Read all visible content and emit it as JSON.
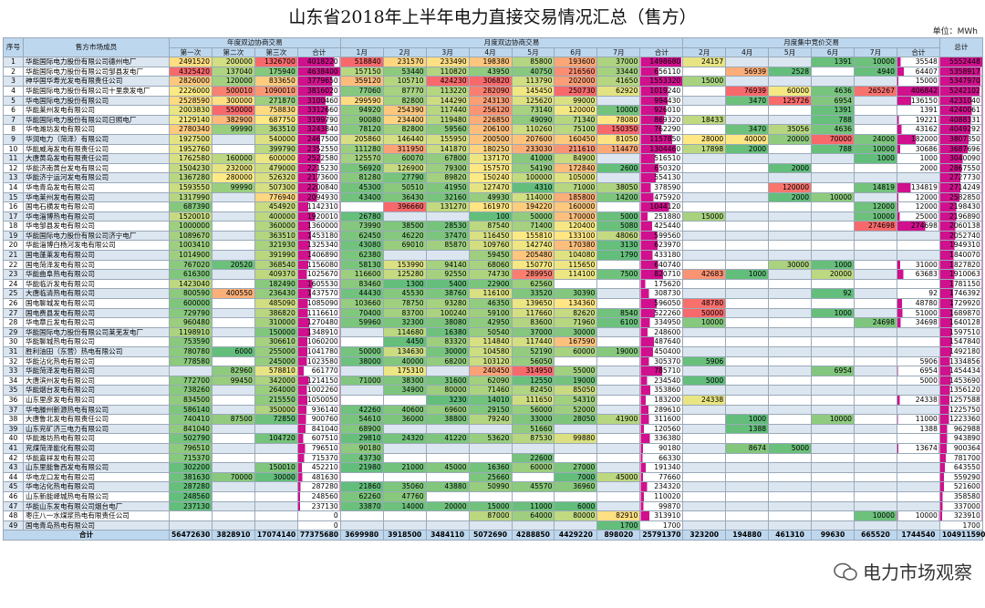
{
  "header": {
    "title": "山东省2018年上半年电力直接交易情况汇总（售方）",
    "unit": "单位：MWh"
  },
  "table": {
    "index_header": "序号",
    "name_header": "售方市场成员",
    "total_header": "总计",
    "groups": [
      {
        "label": "年度双边协商交易",
        "columns": [
          "第一次",
          "第二次",
          "第三次",
          "合计"
        ]
      },
      {
        "label": "月度双边协商交易",
        "columns": [
          "1月",
          "2月",
          "3月",
          "4月",
          "5月",
          "6月",
          "7月",
          "合计"
        ]
      },
      {
        "label": "月度集中竞价交易",
        "columns": [
          "2月",
          "4月",
          "5月",
          "6月",
          "7月",
          "合计"
        ]
      }
    ],
    "rows": [
      [
        1,
        "华能国际电力股份有限公司德州电厂",
        2491520,
        200000,
        1326700,
        4018220,
        518840,
        231570,
        233490,
        198380,
        85800,
        193600,
        37000,
        1498680,
        24157,
        null,
        null,
        1391,
        10000,
        35548,
        5552448
      ],
      [
        2,
        "华能国际电力股份有限公司邹县发电厂",
        4325420,
        137040,
        175940,
        4638400,
        157150,
        53440,
        110820,
        43950,
        40750,
        216560,
        33440,
        656110,
        null,
        56939,
        2528,
        null,
        4940,
        64407,
        5358917
      ],
      [
        3,
        "神华国华寿光发电有限责任公司",
        2826000,
        120000,
        833650,
        3779650,
        359120,
        105710,
        424230,
        306820,
        113790,
        202000,
        41650,
        1553320,
        15000,
        null,
        null,
        null,
        null,
        15000,
        5347970
      ],
      [
        4,
        "华能国际电力股份有限公司十里泉发电厂",
        2226000,
        500010,
        1090010,
        3816020,
        77060,
        87770,
        113220,
        282090,
        145450,
        250730,
        62920,
        1019240,
        null,
        76939,
        60000,
        4636,
        265267,
        406842,
        5242102
      ],
      [
        5,
        "华电国际电力股份有限公司",
        2528590,
        300000,
        271870,
        3100460,
        299590,
        82800,
        144290,
        243130,
        125620,
        99000,
        null,
        994430,
        null,
        3470,
        125726,
        6954,
        null,
        136150,
        4231040
      ],
      [
        6,
        "华能莱州发电有限公司",
        2003830,
        550000,
        758830,
        3312660,
        94920,
        254390,
        117440,
        256120,
        73140,
        120000,
        10000,
        926010,
        null,
        null,
        null,
        1391,
        null,
        1391,
        4240061
      ],
      [
        7,
        "华能国际电力股份有限公司日照电厂",
        2129140,
        382900,
        687750,
        3199790,
        90080,
        234400,
        119480,
        226850,
        49090,
        71340,
        78080,
        869320,
        18433,
        null,
        null,
        788,
        null,
        19221,
        4088331
      ],
      [
        8,
        "华电潍坊发电有限公司",
        2780340,
        99990,
        363510,
        3243840,
        78120,
        82800,
        59560,
        206100,
        110260,
        75100,
        150350,
        762290,
        null,
        3470,
        35056,
        4636,
        null,
        43162,
        4049292
      ],
      [
        9,
        "华润电力（菏泽）有限公司",
        1927500,
        null,
        540000,
        2467500,
        205860,
        146440,
        155950,
        200500,
        207600,
        160450,
        81050,
        1157850,
        28000,
        40000,
        20000,
        70000,
        24000,
        182000,
        3807350
      ],
      [
        10,
        "华能威海发电有限责任公司",
        1952760,
        null,
        399790,
        2352550,
        111280,
        311950,
        141870,
        180250,
        233030,
        211610,
        114470,
        1304460,
        17898,
        2000,
        null,
        788,
        10000,
        30686,
        3687696
      ],
      [
        11,
        "大唐黄岛发电有限责任公司",
        1762580,
        160000,
        600000,
        2522580,
        125570,
        60070,
        67800,
        137170,
        41000,
        84900,
        null,
        516510,
        null,
        null,
        null,
        null,
        1000,
        1000,
        3040090
      ],
      [
        12,
        "华能济南黄台发电有限公司",
        1504230,
        232000,
        479000,
        2215230,
        56920,
        126900,
        79300,
        157570,
        54190,
        172840,
        2600,
        650320,
        null,
        null,
        2000,
        null,
        null,
        2000,
        2867550
      ],
      [
        13,
        "华能济宁运河发电有限公司",
        1367280,
        280000,
        526320,
        2173600,
        81280,
        27790,
        89820,
        150240,
        100000,
        105000,
        null,
        554130,
        null,
        null,
        null,
        null,
        null,
        null,
        2727730
      ],
      [
        14,
        "华电青岛发电有限公司",
        1593550,
        99990,
        507300,
        2200840,
        45300,
        50510,
        41950,
        127470,
        4310,
        71000,
        38050,
        378590,
        null,
        null,
        120000,
        null,
        14819,
        134819,
        2714249
      ],
      [
        15,
        "华电莱州发电有限公司",
        1317990,
        null,
        776940,
        2094930,
        43400,
        36430,
        32160,
        49930,
        114000,
        185800,
        14200,
        475920,
        null,
        null,
        2000,
        10000,
        null,
        12000,
        2582850
      ],
      [
        16,
        "国电石横发电有限公司",
        687390,
        null,
        454920,
        1142310,
        null,
        396660,
        131270,
        161970,
        194220,
        160000,
        null,
        1044120,
        null,
        null,
        null,
        null,
        12000,
        12000,
        2198430
      ],
      [
        17,
        "华电淄博热电有限公司",
        1520010,
        null,
        400000,
        1920010,
        26780,
        null,
        null,
        100,
        50000,
        170000,
        5000,
        251880,
        15000,
        null,
        null,
        null,
        10000,
        25000,
        2196890
      ],
      [
        18,
        "华电邹县发电有限公司",
        1000000,
        null,
        360000,
        1360000,
        73990,
        38500,
        28530,
        87540,
        71400,
        120400,
        5080,
        425440,
        null,
        null,
        null,
        null,
        274698,
        274698,
        2060138
      ],
      [
        19,
        "华能国际电力股份有限公司济宁电厂",
        1089670,
        null,
        363510,
        1453180,
        62450,
        46220,
        37470,
        116450,
        155810,
        133100,
        48060,
        599560,
        null,
        null,
        null,
        null,
        null,
        null,
        2052740
      ],
      [
        20,
        "华能淄博白杨河发电有限公司",
        1003410,
        null,
        321930,
        1325340,
        43080,
        69010,
        85870,
        109760,
        142740,
        170380,
        3130,
        623970,
        null,
        null,
        null,
        null,
        null,
        null,
        1949310
      ],
      [
        21,
        "国电蓬莱发电有限公司",
        1014900,
        null,
        391990,
        1406890,
        62380,
        null,
        null,
        59450,
        205480,
        104080,
        1790,
        433180,
        null,
        null,
        null,
        null,
        null,
        null,
        1840070
      ],
      [
        22,
        "国电菏泽发电有限公司",
        767020,
        20520,
        368540,
        1156080,
        58130,
        153990,
        94140,
        68060,
        150770,
        115650,
        null,
        640740,
        null,
        null,
        30000,
        1000,
        null,
        31000,
        1827820
      ],
      [
        23,
        "华能曲阜热电有限公司",
        616300,
        null,
        409370,
        1025670,
        116600,
        125280,
        92550,
        74730,
        289950,
        114100,
        7500,
        820710,
        42683,
        1000,
        null,
        20000,
        null,
        63683,
        1910063
      ],
      [
        24,
        "华能临沂发电有限公司",
        1423040,
        null,
        182490,
        1605530,
        83460,
        1300,
        5400,
        22900,
        62560,
        null,
        null,
        175620,
        null,
        null,
        null,
        null,
        null,
        null,
        1781150
      ],
      [
        25,
        "大唐临清热电有限公司",
        800590,
        400550,
        236430,
        1437570,
        44430,
        45530,
        38760,
        116100,
        33520,
        30390,
        null,
        308730,
        null,
        null,
        null,
        92,
        null,
        92,
        1746392
      ],
      [
        26,
        "国电聊城发电有限公司",
        600000,
        null,
        485090,
        1085090,
        103660,
        78750,
        93280,
        46350,
        139650,
        134360,
        null,
        596050,
        48780,
        null,
        null,
        null,
        null,
        48780,
        1729920
      ],
      [
        27,
        "国电费县发电有限公司",
        729790,
        null,
        386820,
        1116610,
        70400,
        83700,
        100240,
        59100,
        117660,
        82620,
        8540,
        522260,
        50000,
        null,
        null,
        1000,
        null,
        51000,
        1689870
      ],
      [
        28,
        "华电章丘发电有限公司",
        960480,
        null,
        310000,
        1270480,
        59960,
        32300,
        38080,
        42950,
        83600,
        71960,
        6100,
        334950,
        10000,
        null,
        null,
        null,
        24698,
        34698,
        1640128
      ],
      [
        29,
        "华能国际电力股份有限公司莱芜发电厂",
        1198910,
        null,
        150000,
        1348910,
        null,
        114680,
        16380,
        50540,
        37000,
        30000,
        null,
        248600,
        null,
        null,
        null,
        null,
        null,
        null,
        1597510
      ],
      [
        30,
        "华能聊城热电有限公司",
        753590,
        null,
        306610,
        1060200,
        null,
        4450,
        83320,
        114840,
        117440,
        167590,
        null,
        487640,
        null,
        null,
        null,
        null,
        null,
        null,
        1547840
      ],
      [
        31,
        "胜利油田（东营）热电有限公司",
        780780,
        6000,
        255000,
        1041780,
        50000,
        134630,
        30000,
        104580,
        52190,
        60000,
        19000,
        450400,
        null,
        null,
        null,
        null,
        null,
        null,
        1492180
      ],
      [
        32,
        "华能沾化热电有限公司",
        778580,
        null,
        245000,
        1023580,
        38000,
        40000,
        68200,
        103120,
        56050,
        null,
        null,
        305370,
        5906,
        null,
        null,
        null,
        null,
        5906,
        1334856
      ],
      [
        33,
        "华能菏泽发电有限公司",
        null,
        82960,
        578810,
        661770,
        null,
        175310,
        null,
        240450,
        314950,
        55000,
        null,
        785710,
        null,
        null,
        null,
        6954,
        null,
        6954,
        1454434
      ],
      [
        34,
        "大唐滨州发电有限公司",
        772700,
        99450,
        342000,
        1214150,
        71000,
        38300,
        31600,
        62090,
        12550,
        19000,
        null,
        234540,
        5000,
        null,
        null,
        null,
        null,
        5000,
        1453690
      ],
      [
        35,
        "华能烟台发电有限公司",
        738260,
        null,
        264000,
        1002260,
        null,
        34900,
        80000,
        71460,
        82450,
        85050,
        null,
        353860,
        null,
        null,
        null,
        null,
        null,
        null,
        1356120
      ],
      [
        36,
        "山东里彦发电有限公司",
        834500,
        null,
        215550,
        1050050,
        null,
        null,
        3230,
        14010,
        111650,
        54310,
        null,
        183200,
        24338,
        null,
        null,
        null,
        null,
        24338,
        1257588
      ],
      [
        37,
        "华电滕州新源热电有限公司",
        586140,
        null,
        350000,
        936140,
        42260,
        40600,
        69600,
        29150,
        56000,
        52000,
        null,
        289610,
        null,
        null,
        null,
        null,
        null,
        null,
        1225750
      ],
      [
        38,
        "大唐鲁北发电有限责任公司",
        740410,
        87500,
        72850,
        900760,
        54610,
        36000,
        38800,
        79240,
        33000,
        28050,
        41900,
        311600,
        null,
        1000,
        null,
        10000,
        null,
        11000,
        1223360
      ],
      [
        39,
        "山东兖矿济三电力有限公司",
        841040,
        null,
        null,
        841040,
        68900,
        null,
        null,
        null,
        51660,
        null,
        null,
        120560,
        null,
        1388,
        null,
        null,
        null,
        1388,
        962988
      ],
      [
        40,
        "华能潍坊热电有限公司",
        502790,
        null,
        104720,
        607510,
        29810,
        24320,
        41220,
        53620,
        87530,
        99880,
        null,
        336380,
        null,
        null,
        null,
        null,
        null,
        null,
        943890
      ],
      [
        41,
        "兖煤菏泽能化有限公司",
        796510,
        null,
        null,
        796510,
        90180,
        null,
        null,
        null,
        null,
        null,
        null,
        90180,
        null,
        8674,
        5000,
        null,
        null,
        13674,
        900364
      ],
      [
        42,
        "华能嘉祥发电有限公司",
        715370,
        null,
        null,
        715370,
        43730,
        null,
        null,
        null,
        22600,
        null,
        null,
        66330,
        null,
        null,
        null,
        null,
        null,
        null,
        781700
      ],
      [
        43,
        "山东里能鲁西发电有限公司",
        302200,
        null,
        150010,
        452210,
        21980,
        21000,
        45000,
        16360,
        60000,
        27000,
        null,
        191340,
        null,
        null,
        null,
        null,
        null,
        null,
        643550
      ],
      [
        44,
        "华电龙口发电有限公司",
        381630,
        70000,
        30000,
        481630,
        null,
        null,
        null,
        25660,
        null,
        7000,
        45000,
        77660,
        null,
        null,
        null,
        null,
        null,
        null,
        559290
      ],
      [
        45,
        "华电沾化热电有限公司",
        287280,
        null,
        null,
        287280,
        21860,
        35060,
        43880,
        50990,
        45570,
        36960,
        null,
        234320,
        null,
        null,
        null,
        null,
        null,
        null,
        521600
      ],
      [
        46,
        "山东新能峄城热电有限公司",
        248560,
        null,
        null,
        248560,
        62260,
        47760,
        null,
        null,
        null,
        null,
        null,
        110020,
        null,
        null,
        null,
        null,
        null,
        null,
        358580
      ],
      [
        47,
        "华能山东发电有限公司烟台电厂",
        237130,
        null,
        null,
        237130,
        33870,
        14000,
        20000,
        15000,
        11000,
        6000,
        null,
        99870,
        null,
        null,
        null,
        null,
        null,
        null,
        337000
      ],
      [
        48,
        "枣庄八一水煤浆热电有限责任公司",
        null,
        null,
        null,
        0,
        null,
        null,
        null,
        87000,
        64000,
        80000,
        82910,
        313910,
        null,
        null,
        null,
        null,
        10000,
        10000,
        323910
      ],
      [
        49,
        "国电青岛热电有限公司",
        null,
        null,
        null,
        0,
        null,
        null,
        null,
        null,
        null,
        null,
        1700,
        1700,
        null,
        null,
        null,
        null,
        null,
        null,
        1700
      ]
    ],
    "total_label": "合计",
    "total_values": [
      56472630,
      3828910,
      17074140,
      77375680,
      3699980,
      3918500,
      3484110,
      5072690,
      4288850,
      4429220,
      898020,
      25791370,
      323200,
      194880,
      461310,
      99630,
      665520,
      1744540,
      104911590
    ]
  },
  "watermark": "电力市场观察"
}
